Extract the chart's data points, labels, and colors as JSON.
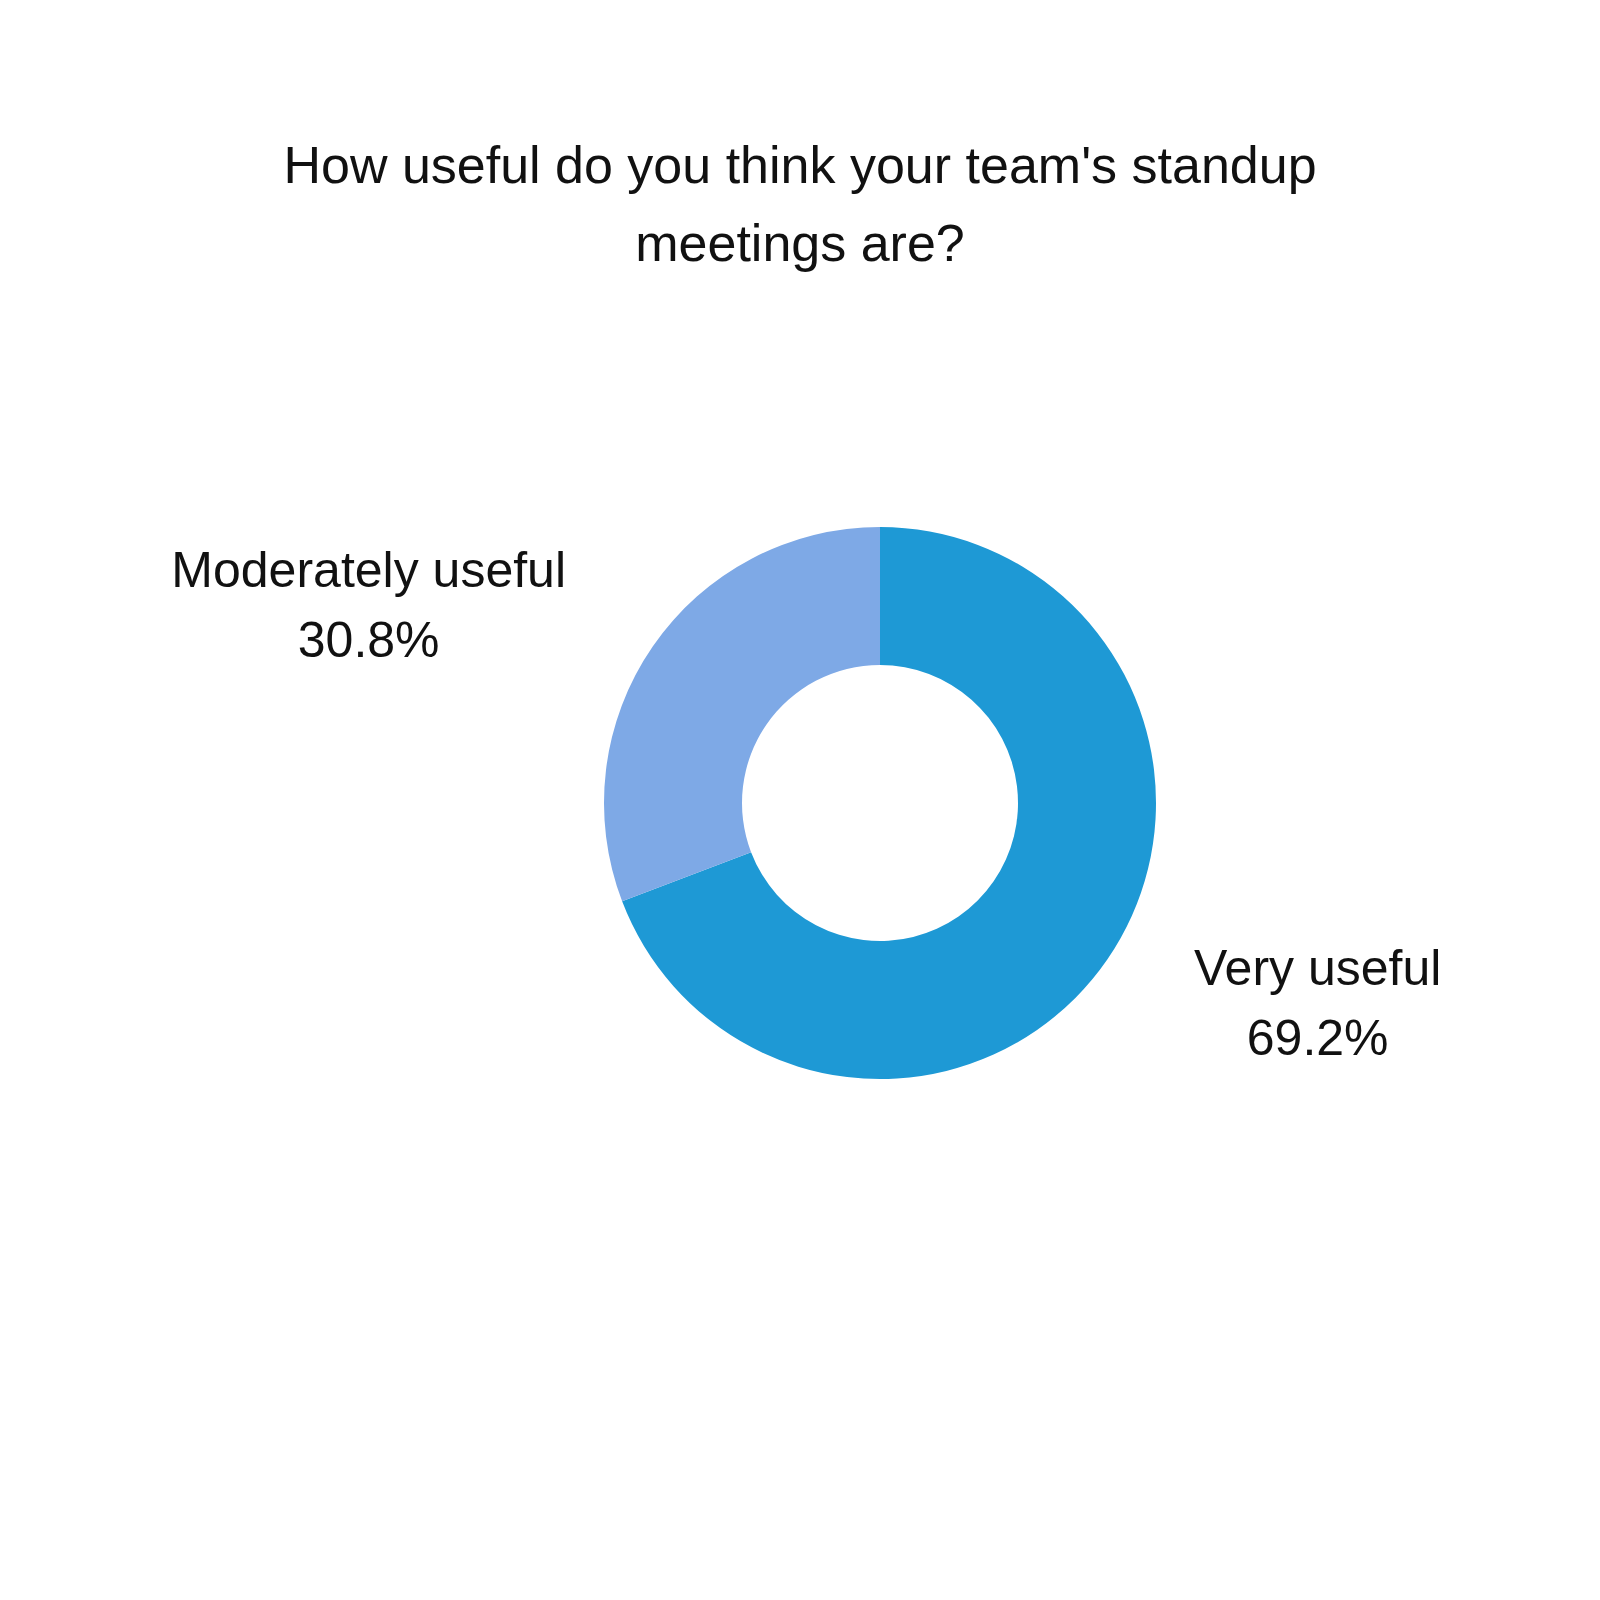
{
  "chart_data": {
    "type": "donut",
    "title": "How useful do you think your team's standup meetings are?",
    "categories": [
      "Very useful",
      "Moderately useful"
    ],
    "values": [
      69.2,
      30.8
    ],
    "colors": [
      "#1e99d5",
      "#7ea9e6"
    ],
    "value_labels": [
      "69.2%",
      "30.8%"
    ]
  }
}
